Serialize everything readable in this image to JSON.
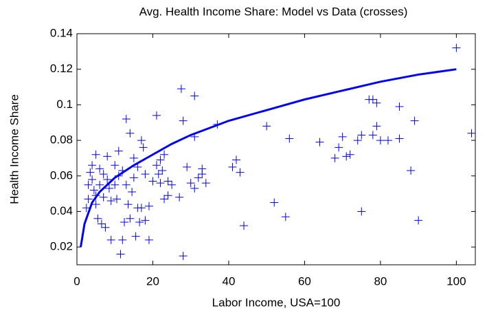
{
  "chart_data": {
    "type": "scatter",
    "title": "Avg. Health Income Share: Model vs Data (crosses)",
    "x_label": "Labor Income, USA=100",
    "y_label": "Health Income Share",
    "xlim": [
      0,
      105
    ],
    "ylim": [
      0.01,
      0.14
    ],
    "xticks": [
      0,
      20,
      40,
      60,
      80,
      100
    ],
    "yticks": [
      0.02,
      0.04,
      0.06,
      0.08,
      0.1,
      0.12,
      0.14
    ],
    "grid": false,
    "series": [
      {
        "type": "line",
        "color": "#0000ff",
        "x": [
          1,
          2,
          4,
          6,
          10,
          15,
          20,
          25,
          30,
          40,
          50,
          60,
          70,
          80,
          90,
          100
        ],
        "values": [
          0.02,
          0.033,
          0.045,
          0.051,
          0.059,
          0.066,
          0.072,
          0.078,
          0.083,
          0.091,
          0.097,
          0.103,
          0.108,
          0.113,
          0.117,
          0.12
        ]
      },
      {
        "type": "scatter",
        "color": "#0000ff",
        "x": [
          2.5,
          3,
          3,
          3.5,
          4,
          4,
          4.5,
          5,
          5,
          5,
          5.5,
          6,
          6,
          6.5,
          7,
          7,
          7.5,
          8,
          8,
          8.5,
          9,
          9,
          10,
          10,
          10.5,
          11,
          11,
          11.5,
          12,
          12,
          12.5,
          13,
          13,
          13.5,
          14,
          14,
          14.5,
          15,
          15,
          15.5,
          16,
          16,
          16.5,
          17,
          17,
          17.5,
          18,
          18,
          19,
          19,
          20,
          21,
          21,
          21.5,
          22,
          22,
          22.5,
          23,
          23,
          24,
          24,
          25,
          27,
          27.5,
          28,
          28,
          29,
          30,
          31,
          31,
          31,
          32,
          33,
          33,
          34,
          37,
          41,
          42,
          43,
          44,
          50,
          52,
          55,
          56,
          64,
          68,
          69,
          70,
          71,
          72,
          74,
          75,
          75,
          77,
          78,
          78,
          79,
          79,
          80,
          82,
          85,
          85,
          88,
          89,
          90,
          100,
          104
        ],
        "values": [
          0.042,
          0.055,
          0.047,
          0.062,
          0.066,
          0.058,
          0.052,
          0.072,
          0.049,
          0.044,
          0.036,
          0.064,
          0.055,
          0.033,
          0.061,
          0.048,
          0.031,
          0.071,
          0.058,
          0.053,
          0.046,
          0.024,
          0.066,
          0.055,
          0.047,
          0.074,
          0.06,
          0.016,
          0.024,
          0.063,
          0.034,
          0.092,
          0.055,
          0.044,
          0.084,
          0.036,
          0.051,
          0.07,
          0.059,
          0.026,
          0.065,
          0.042,
          0.034,
          0.08,
          0.042,
          0.076,
          0.061,
          0.035,
          0.024,
          0.043,
          0.057,
          0.094,
          0.066,
          0.061,
          0.069,
          0.056,
          0.063,
          0.072,
          0.047,
          0.057,
          0.049,
          0.055,
          0.048,
          0.109,
          0.091,
          0.015,
          0.065,
          0.056,
          0.105,
          0.082,
          0.053,
          0.059,
          0.064,
          0.061,
          0.056,
          0.089,
          0.065,
          0.069,
          0.062,
          0.032,
          0.088,
          0.045,
          0.037,
          0.081,
          0.079,
          0.07,
          0.076,
          0.082,
          0.071,
          0.072,
          0.08,
          0.083,
          0.04,
          0.103,
          0.083,
          0.103,
          0.101,
          0.088,
          0.08,
          0.08,
          0.099,
          0.081,
          0.063,
          0.091,
          0.035,
          0.132,
          0.084
        ]
      }
    ]
  }
}
